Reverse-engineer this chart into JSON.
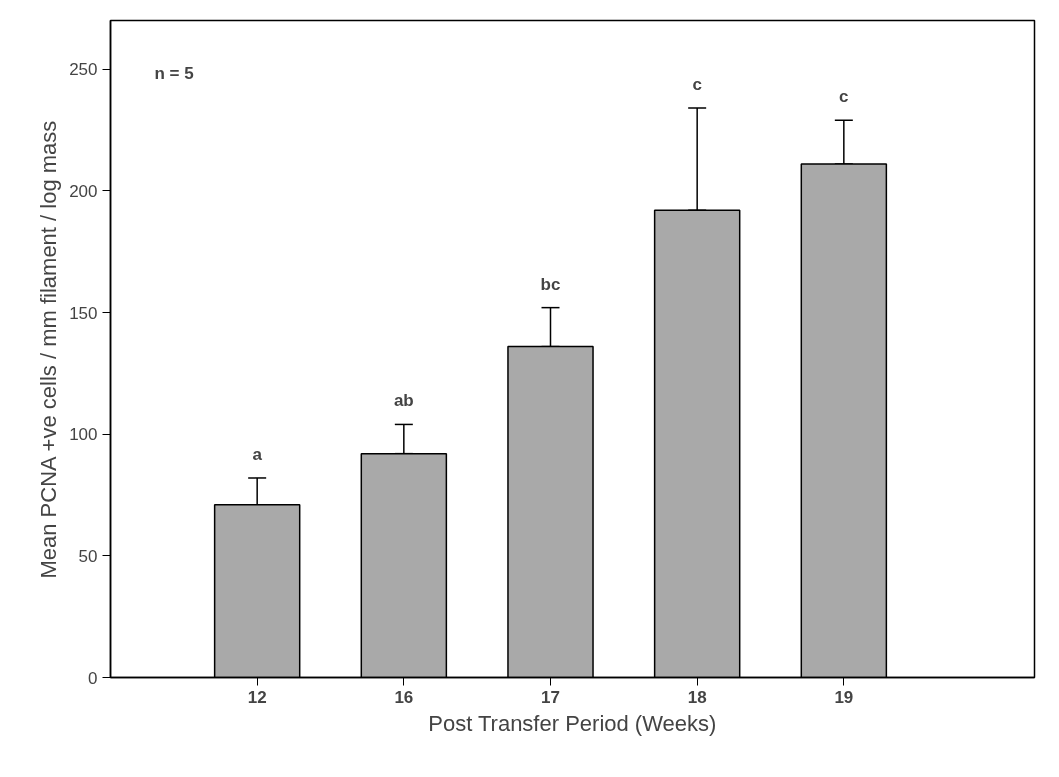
{
  "chart_data": {
    "type": "bar",
    "xlabel": "Post Transfer Period (Weeks)",
    "ylabel": "Mean PCNA +ve cells / mm filament / log mass",
    "categories": [
      "12",
      "16",
      "17",
      "18",
      "19"
    ],
    "values": [
      71,
      92,
      136,
      192,
      211
    ],
    "errors": [
      [
        71,
        82
      ],
      [
        92,
        104
      ],
      [
        136,
        152
      ],
      [
        192,
        234
      ],
      [
        211,
        229
      ]
    ],
    "color": "#a9a9a9",
    "ylim": [
      0,
      270
    ],
    "yticks": [
      0,
      50,
      100,
      150,
      200,
      250
    ],
    "grid": false,
    "annotations": [
      "n = 5",
      {
        "text": "a",
        "x": "12",
        "y": 82
      },
      {
        "text": "ab",
        "x": "16",
        "y": 104
      },
      {
        "text": "bc",
        "x": "17",
        "y": 152
      },
      {
        "text": "c",
        "x": "18",
        "y": 234
      },
      {
        "text": "c",
        "x": "19",
        "y": 229
      }
    ]
  }
}
